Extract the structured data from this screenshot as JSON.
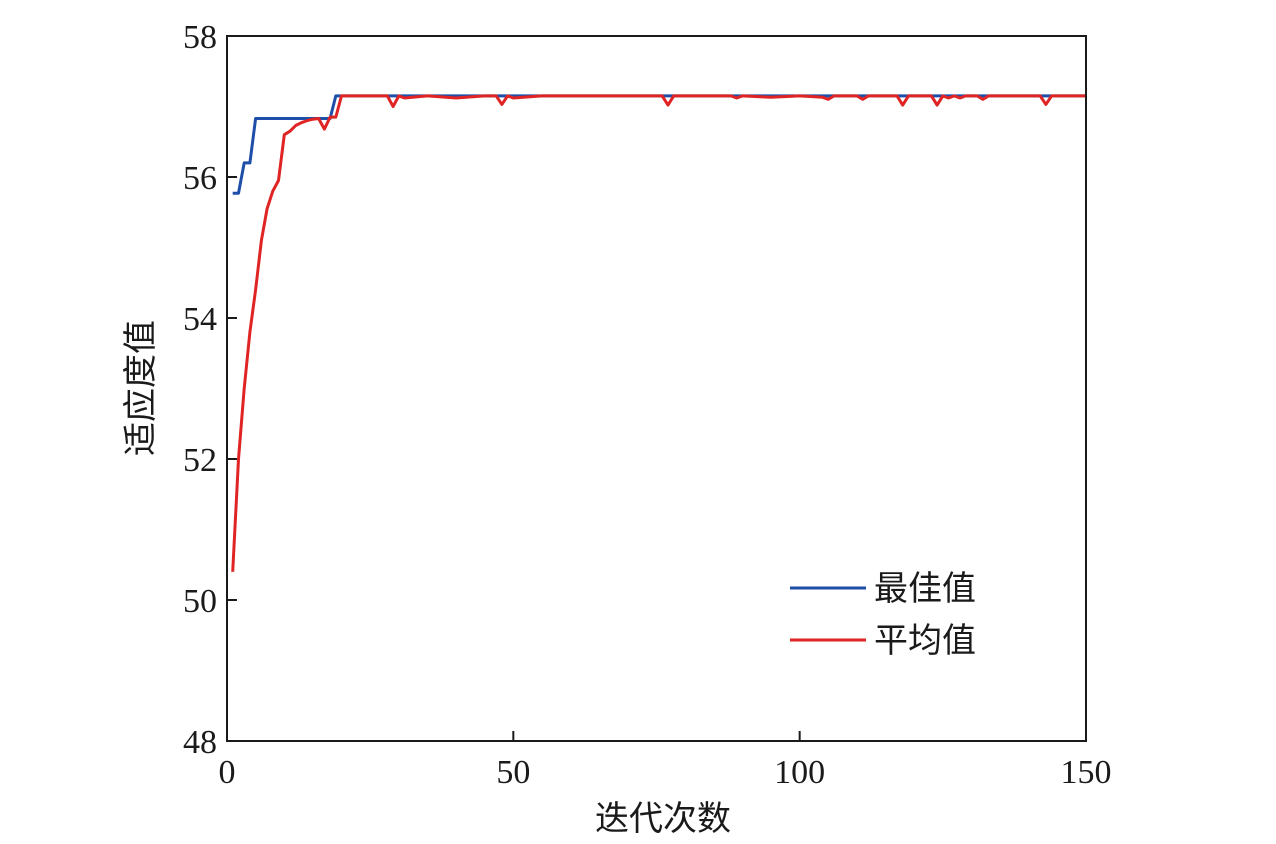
{
  "chart_data": {
    "type": "line",
    "xlabel": "迭代次数",
    "ylabel": "适应度值",
    "xlim": [
      0,
      150
    ],
    "ylim": [
      48,
      58
    ],
    "xticks": [
      0,
      50,
      100,
      150
    ],
    "yticks": [
      48,
      50,
      52,
      54,
      56,
      58
    ],
    "grid": false,
    "legend_position": "bottom-right",
    "series": [
      {
        "name": "最佳值",
        "color": "#1f4ea8",
        "x": [
          1,
          2,
          3,
          4,
          5,
          10,
          15,
          18,
          19,
          20,
          30,
          40,
          50,
          60,
          70,
          80,
          90,
          100,
          110,
          120,
          130,
          140,
          150
        ],
        "y": [
          55.77,
          55.77,
          56.2,
          56.2,
          56.83,
          56.83,
          56.83,
          56.83,
          57.15,
          57.15,
          57.15,
          57.15,
          57.15,
          57.15,
          57.15,
          57.15,
          57.15,
          57.15,
          57.15,
          57.15,
          57.15,
          57.15,
          57.15
        ]
      },
      {
        "name": "平均值",
        "color": "#e02424",
        "x": [
          1,
          2,
          3,
          4,
          5,
          6,
          7,
          8,
          9,
          10,
          11,
          12,
          13,
          14,
          15,
          16,
          17,
          18,
          19,
          20,
          25,
          28,
          29,
          30,
          31,
          35,
          40,
          45,
          47,
          48,
          49,
          50,
          55,
          60,
          70,
          76,
          77,
          78,
          85,
          88,
          89,
          90,
          95,
          100,
          104,
          105,
          106,
          110,
          111,
          112,
          115,
          117,
          118,
          119,
          123,
          124,
          125,
          126,
          127,
          128,
          129,
          131,
          132,
          133,
          135,
          142,
          143,
          144,
          150
        ],
        "y": [
          50.4,
          52.0,
          53.0,
          53.8,
          54.4,
          55.1,
          55.55,
          55.8,
          55.95,
          56.6,
          56.65,
          56.73,
          56.77,
          56.8,
          56.82,
          56.83,
          56.68,
          56.85,
          56.85,
          57.15,
          57.15,
          57.15,
          57.0,
          57.15,
          57.12,
          57.15,
          57.12,
          57.15,
          57.15,
          57.03,
          57.15,
          57.12,
          57.15,
          57.15,
          57.15,
          57.15,
          57.02,
          57.15,
          57.15,
          57.15,
          57.12,
          57.15,
          57.13,
          57.15,
          57.13,
          57.1,
          57.15,
          57.15,
          57.1,
          57.15,
          57.15,
          57.15,
          57.02,
          57.15,
          57.15,
          57.02,
          57.15,
          57.12,
          57.15,
          57.12,
          57.15,
          57.15,
          57.1,
          57.15,
          57.15,
          57.15,
          57.03,
          57.15,
          57.15
        ]
      }
    ]
  }
}
